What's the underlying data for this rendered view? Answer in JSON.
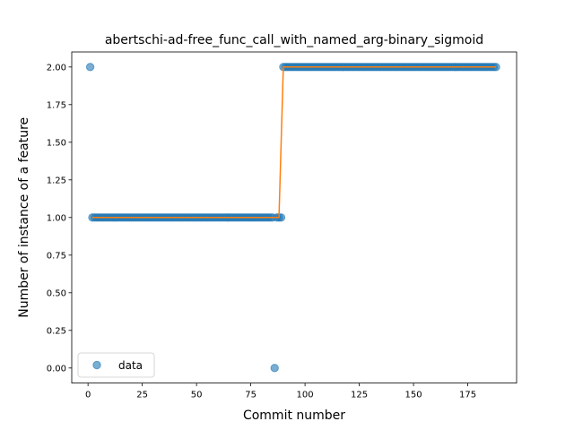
{
  "chart_data": {
    "type": "scatter",
    "title": "abertschi-ad-free_func_call_with_named_arg-binary_sigmoid",
    "xlabel": "Commit number",
    "ylabel": "Number of instance of a feature",
    "xlim": [
      -7.5,
      197.5
    ],
    "ylim": [
      -0.1,
      2.1
    ],
    "xticks": [
      0,
      25,
      50,
      75,
      100,
      125,
      150,
      175
    ],
    "xtick_labels": [
      "0",
      "25",
      "50",
      "75",
      "100",
      "125",
      "150",
      "175"
    ],
    "yticks": [
      0.0,
      0.25,
      0.5,
      0.75,
      1.0,
      1.25,
      1.5,
      1.75,
      2.0
    ],
    "ytick_labels": [
      "0.00",
      "0.25",
      "0.50",
      "0.75",
      "1.00",
      "1.25",
      "1.50",
      "1.75",
      "2.00"
    ],
    "grid": false,
    "legend": {
      "position": "lower-left",
      "entries": [
        "data"
      ]
    },
    "series": [
      {
        "name": "data",
        "kind": "scatter",
        "color": "#1f77b4",
        "segments": [
          {
            "x_start": 1,
            "x_end": 1,
            "y": 2
          },
          {
            "x_start": 2,
            "x_end": 85,
            "y": 1
          },
          {
            "x_start": 86,
            "x_end": 86,
            "y": 0
          },
          {
            "x_start": 87,
            "x_end": 89,
            "y": 1
          },
          {
            "x_start": 90,
            "x_end": 188,
            "y": 2
          }
        ]
      },
      {
        "kind": "line",
        "color": "#ff7f0e",
        "x": [
          2,
          88,
          90,
          188
        ],
        "y": [
          1,
          1,
          2,
          2
        ]
      }
    ]
  }
}
